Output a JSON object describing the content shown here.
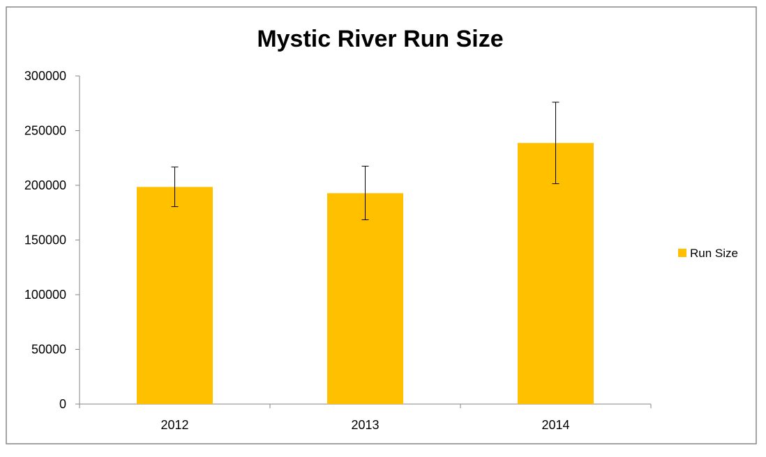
{
  "chart_data": {
    "type": "bar",
    "title": "Mystic River Run Size",
    "xlabel": "",
    "ylabel": "",
    "categories": [
      "2012",
      "2013",
      "2014"
    ],
    "series": [
      {
        "name": "Run Size",
        "values": [
          198500,
          192800,
          238700
        ],
        "error_low": [
          180500,
          168500,
          201500
        ],
        "error_high": [
          216700,
          217500,
          276000
        ],
        "color": "#FFC000"
      }
    ],
    "ylim": [
      0,
      300000
    ],
    "yticks": [
      "0",
      "50000",
      "100000",
      "150000",
      "200000",
      "250000",
      "300000"
    ],
    "grid": false,
    "legend": "right"
  }
}
